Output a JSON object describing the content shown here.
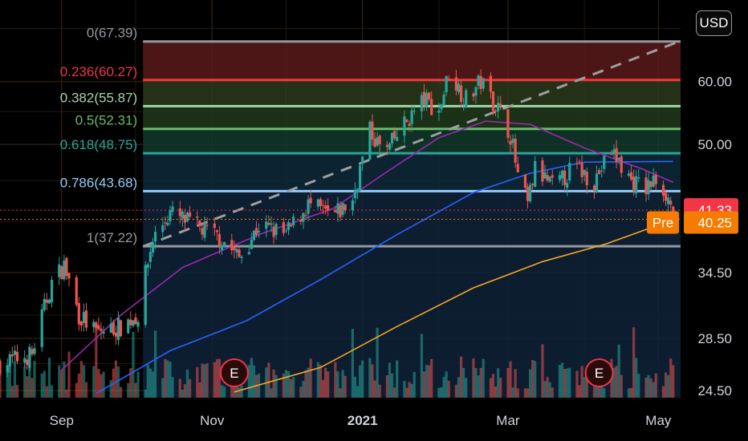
{
  "currency_button": "USD",
  "colors": {
    "up": "#26a69a",
    "down": "#ef5350",
    "background": "#000000",
    "grid": "#3a2a18",
    "sma50": "#9c27b0",
    "sma100": "#2962ff",
    "sma200": "#f5a623",
    "trendline": "#9e9e9e"
  },
  "chart_data": {
    "type": "candlestick",
    "y_scale": "log",
    "ylim": [
      24.0,
      76.0
    ],
    "y_ticks": [
      "60.00",
      "50.00",
      "34.50",
      "28.50",
      "24.50"
    ],
    "x_ticks": [
      {
        "label": "Sep",
        "date": "2020-09-01",
        "bold": false
      },
      {
        "label": "Nov",
        "date": "2020-11-01",
        "bold": false
      },
      {
        "label": "2021",
        "date": "2021-01-01",
        "bold": true
      },
      {
        "label": "Mar",
        "date": "2021-03-01",
        "bold": false
      },
      {
        "label": "May",
        "date": "2021-05-01",
        "bold": false
      }
    ],
    "x_range": [
      "2020-08-07",
      "2021-05-10"
    ],
    "fibonacci": {
      "start_date": "2020-10-04",
      "end_date": "2021-05-10",
      "levels": [
        {
          "label": "0(67.39)",
          "value": 67.39,
          "color": "#9598a1",
          "fill": "#5a1a1a"
        },
        {
          "label": "0.236(60.27)",
          "value": 60.27,
          "color": "#f23645",
          "fill": "#2b3a1a"
        },
        {
          "label": "0.382(55.87)",
          "value": 55.87,
          "color": "#a5d6a7",
          "fill": "#1f3a1c"
        },
        {
          "label": "0.5(52.31)",
          "value": 52.31,
          "color": "#66bb6a",
          "fill": "#123a2c"
        },
        {
          "label": "0.618(48.75)",
          "value": 48.75,
          "color": "#26a69a",
          "fill": "#0e2a3a"
        },
        {
          "label": "0.786(43.68)",
          "value": 43.68,
          "color": "#90caf9",
          "fill": "#0f2338"
        },
        {
          "label": "1(37.22)",
          "value": 37.22,
          "color": "#9598a1",
          "fill": "#0e2238"
        }
      ]
    },
    "trendline": {
      "start": {
        "date": "2020-10-04",
        "value": 37.2
      },
      "end": {
        "date": "2021-05-10",
        "value": 67.5
      }
    },
    "series": [
      {
        "name": "",
        "kind": "sma",
        "color": "#9c27b0",
        "points": [
          [
            "2020-09-01",
            26.0
          ],
          [
            "2020-09-25",
            30.5
          ],
          [
            "2020-10-20",
            35.0
          ],
          [
            "2020-11-20",
            38.5
          ],
          [
            "2020-12-20",
            41.5
          ],
          [
            "2021-01-10",
            46.0
          ],
          [
            "2021-02-01",
            51.0
          ],
          [
            "2021-02-20",
            53.5
          ],
          [
            "2021-03-10",
            53.0
          ],
          [
            "2021-04-01",
            49.5
          ],
          [
            "2021-04-25",
            46.5
          ],
          [
            "2021-05-07",
            44.8
          ]
        ]
      },
      {
        "name": "",
        "kind": "sma",
        "color": "#2962ff",
        "points": [
          [
            "2020-09-15",
            24.3
          ],
          [
            "2020-10-15",
            27.5
          ],
          [
            "2020-11-15",
            30.0
          ],
          [
            "2020-12-15",
            33.8
          ],
          [
            "2021-01-15",
            38.5
          ],
          [
            "2021-02-15",
            43.5
          ],
          [
            "2021-03-10",
            46.0
          ],
          [
            "2021-04-01",
            47.5
          ],
          [
            "2021-05-07",
            47.6
          ]
        ]
      },
      {
        "name": "",
        "kind": "sma",
        "color": "#f5a623",
        "points": [
          [
            "2020-11-10",
            24.4
          ],
          [
            "2020-12-15",
            26.2
          ],
          [
            "2021-01-15",
            29.5
          ],
          [
            "2021-02-15",
            33.0
          ],
          [
            "2021-03-15",
            35.6
          ],
          [
            "2021-04-10",
            37.5
          ],
          [
            "2021-05-07",
            40.2
          ]
        ]
      }
    ],
    "price_anchors": [
      [
        "2020-08-07",
        26.5
      ],
      [
        "2020-08-20",
        27.2
      ],
      [
        "2020-08-28",
        33.5
      ],
      [
        "2020-09-02",
        35.2
      ],
      [
        "2020-09-08",
        30.5
      ],
      [
        "2020-09-15",
        29.0
      ],
      [
        "2020-09-25",
        29.5
      ],
      [
        "2020-10-02",
        30.5
      ],
      [
        "2020-10-08",
        38.0
      ],
      [
        "2020-10-15",
        41.0
      ],
      [
        "2020-10-25",
        39.5
      ],
      [
        "2020-11-05",
        38.0
      ],
      [
        "2020-11-12",
        36.0
      ],
      [
        "2020-11-20",
        39.5
      ],
      [
        "2020-12-01",
        38.5
      ],
      [
        "2020-12-10",
        42.0
      ],
      [
        "2020-12-20",
        40.5
      ],
      [
        "2020-12-28",
        42.5
      ],
      [
        "2021-01-04",
        52.0
      ],
      [
        "2021-01-10",
        48.5
      ],
      [
        "2021-01-18",
        53.0
      ],
      [
        "2021-01-26",
        57.0
      ],
      [
        "2021-02-01",
        55.0
      ],
      [
        "2021-02-05",
        61.5
      ],
      [
        "2021-02-12",
        57.0
      ],
      [
        "2021-02-18",
        60.0
      ],
      [
        "2021-02-25",
        55.5
      ],
      [
        "2021-03-02",
        51.5
      ],
      [
        "2021-03-05",
        45.5
      ],
      [
        "2021-03-09",
        42.0
      ],
      [
        "2021-03-12",
        46.5
      ],
      [
        "2021-03-20",
        44.0
      ],
      [
        "2021-03-28",
        47.0
      ],
      [
        "2021-04-05",
        45.0
      ],
      [
        "2021-04-12",
        49.0
      ],
      [
        "2021-04-20",
        45.0
      ],
      [
        "2021-04-26",
        44.0
      ],
      [
        "2021-05-01",
        45.5
      ],
      [
        "2021-05-07",
        41.3
      ]
    ],
    "last_price": {
      "value": 41.33,
      "label": "41.33",
      "color": "#f23645"
    },
    "premarket_price": {
      "value": 40.25,
      "label": "40.25",
      "prefix": "Pre",
      "color": "#f57c00"
    },
    "earnings": [
      {
        "date": "2020-11-10",
        "label": "E"
      },
      {
        "date": "2021-04-07",
        "label": "E"
      }
    ]
  }
}
